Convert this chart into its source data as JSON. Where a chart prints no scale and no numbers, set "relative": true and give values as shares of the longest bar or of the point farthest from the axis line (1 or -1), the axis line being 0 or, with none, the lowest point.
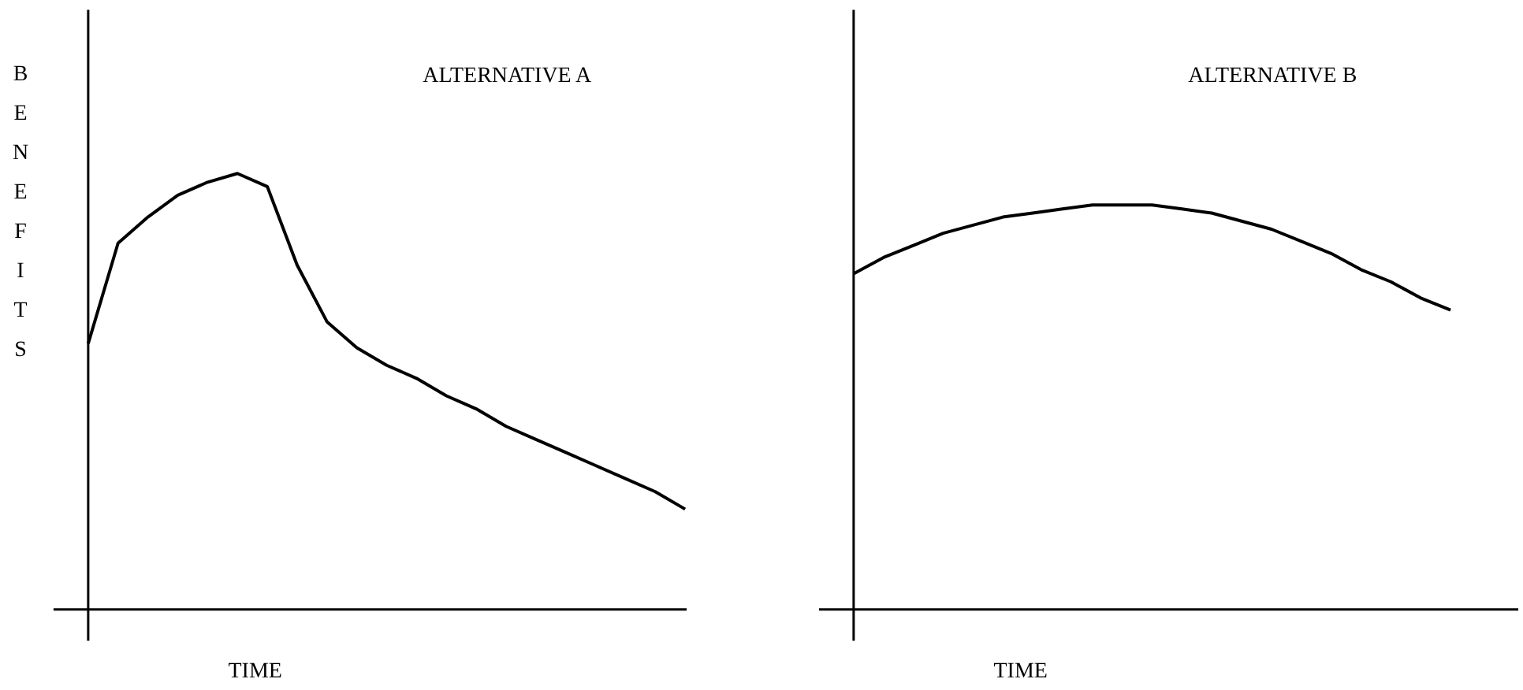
{
  "chart_data": [
    {
      "type": "line",
      "title": "ALTERNATIVE A",
      "xlabel": "TIME",
      "ylabel": "BENEFITS",
      "relative": true,
      "color": "#000000",
      "categories": [
        null,
        null,
        null,
        null,
        null,
        null,
        null,
        null,
        null,
        null,
        null,
        null,
        null,
        null,
        null,
        null,
        null,
        null,
        null,
        null,
        null
      ],
      "values": [
        0.61,
        0.84,
        0.9,
        0.95,
        0.98,
        1.0,
        0.97,
        0.79,
        0.66,
        0.6,
        0.56,
        0.53,
        0.49,
        0.46,
        0.42,
        0.39,
        0.36,
        0.33,
        0.3,
        0.27,
        0.23
      ]
    },
    {
      "type": "line",
      "title": "ALTERNATIVE B",
      "xlabel": "TIME",
      "relative": true,
      "color": "#000000",
      "categories": [
        null,
        null,
        null,
        null,
        null,
        null,
        null,
        null,
        null,
        null,
        null,
        null,
        null,
        null,
        null,
        null,
        null,
        null,
        null,
        null,
        null
      ],
      "values": [
        0.83,
        0.87,
        0.9,
        0.93,
        0.95,
        0.97,
        0.98,
        0.99,
        1.0,
        1.0,
        1.0,
        0.99,
        0.98,
        0.96,
        0.94,
        0.91,
        0.88,
        0.84,
        0.81,
        0.77,
        0.74
      ]
    }
  ]
}
